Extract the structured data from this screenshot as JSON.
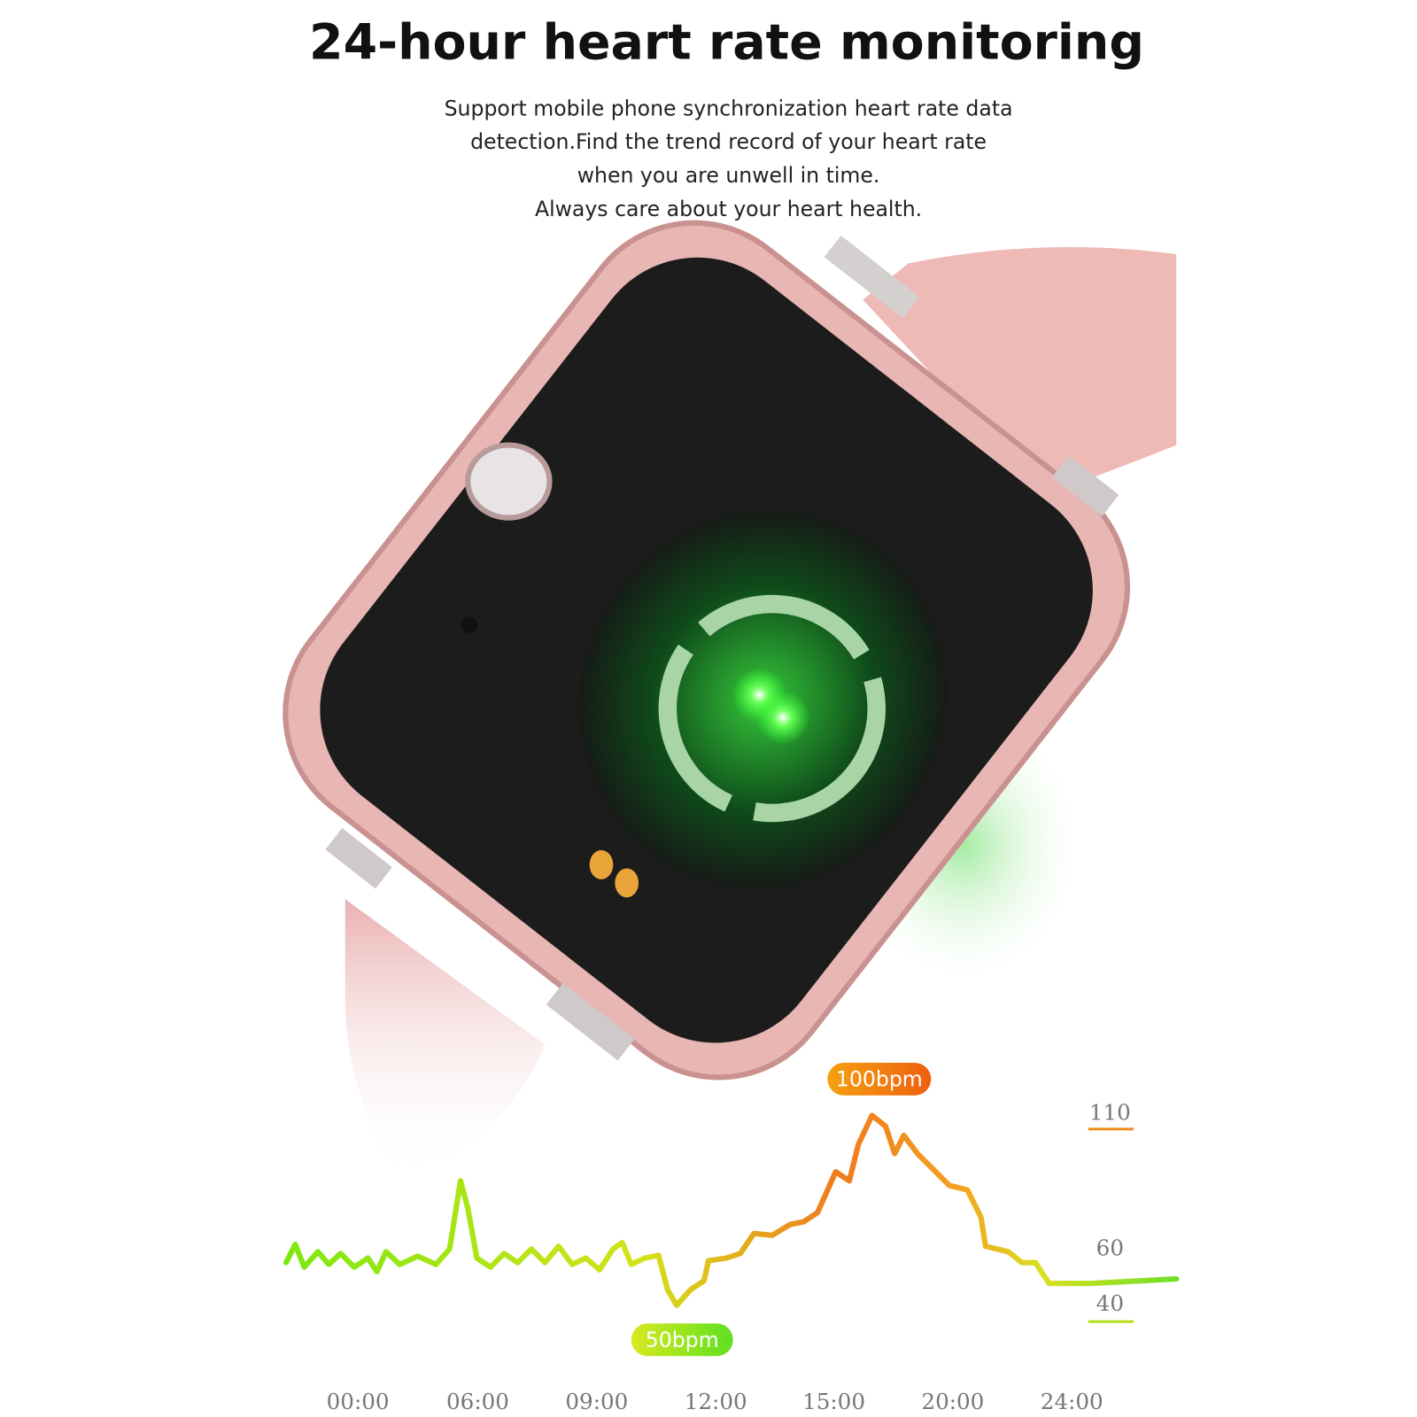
{
  "header": {
    "title": "24-hour heart rate monitoring",
    "description": [
      "Support mobile phone synchronization heart rate data",
      "detection.Find the trend record of your heart rate",
      "when you are unwell in time.",
      "Always care about your heart health."
    ]
  },
  "graph": {
    "peak_label": "100bpm",
    "low_label": "50bpm",
    "scale_labels": [
      "110",
      "60",
      "40"
    ],
    "time_labels": [
      "00:00",
      "06:00",
      "09:00",
      "12:00",
      "15:00",
      "20:00",
      "24:00"
    ]
  }
}
